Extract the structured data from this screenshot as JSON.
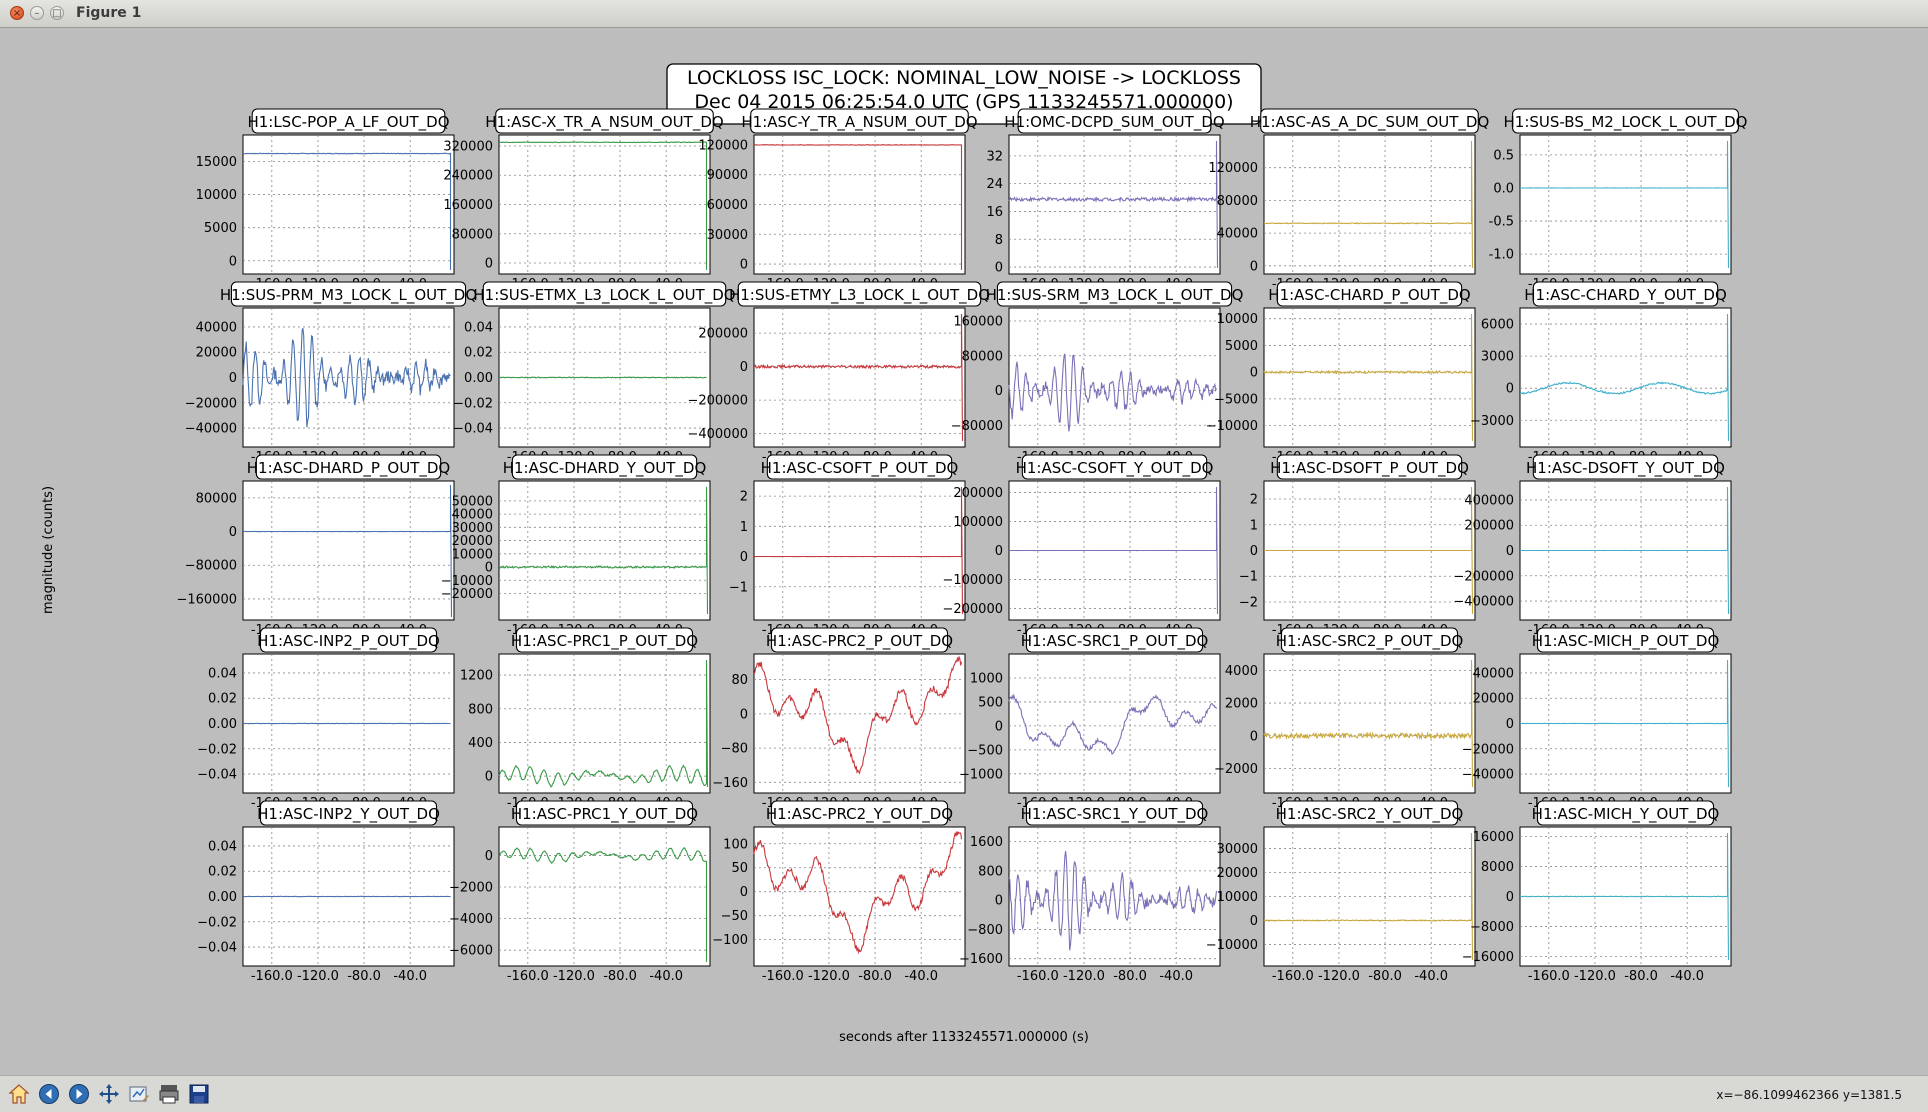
{
  "window": {
    "title": "Figure 1"
  },
  "figure": {
    "suptitle_line1": "LOCKLOSS ISC_LOCK: NOMINAL_LOW_NOISE -> LOCKLOSS",
    "suptitle_line2": "Dec 04 2015 06:25:54.0 UTC (GPS 1133245571.000000)",
    "ylabel": "magnitude (counts)",
    "xlabel": "seconds after 1133245571.000000 (s)"
  },
  "toolbar": {
    "buttons": [
      "home-icon",
      "back-icon",
      "forward-icon",
      "pan-icon",
      "subplots-icon",
      "zoom-icon",
      "save-icon"
    ],
    "coords": "x=−86.1099462366 y=1381.5"
  },
  "chart_data": {
    "type": "line",
    "layout": "grid 5 rows x 6 columns",
    "grid": true,
    "x_ticks": [
      "-160.0",
      "-120.0",
      "-80.0",
      "-40.0"
    ],
    "xlim": [
      -185,
      -2
    ],
    "series_colors": [
      "#4a72b0",
      "#3a9a47",
      "#c8383c",
      "#7a72b8",
      "#c9a93d",
      "#41b0cc"
    ],
    "panels": [
      {
        "title": "H1:LSC-POP_A_LF_OUT_DQ",
        "yticks": [
          "15000",
          "10000",
          "5000",
          "0"
        ],
        "ylim": [
          -2000,
          19000
        ],
        "level": 16200,
        "pattern": "flat",
        "amp": 50,
        "end": "drop"
      },
      {
        "title": "H1:ASC-X_TR_A_NSUM_OUT_DQ",
        "yticks": [
          "320000",
          "240000",
          "160000",
          "80000",
          "0"
        ],
        "ylim": [
          -30000,
          350000
        ],
        "level": 330000,
        "pattern": "flat",
        "amp": 800,
        "end": "drop"
      },
      {
        "title": "H1:ASC-Y_TR_A_NSUM_OUT_DQ",
        "yticks": [
          "120000",
          "90000",
          "60000",
          "30000",
          "0"
        ],
        "ylim": [
          -10000,
          130000
        ],
        "level": 120000,
        "pattern": "flat",
        "amp": 300,
        "end": "drop"
      },
      {
        "title": "H1:OMC-DCPD_SUM_OUT_DQ",
        "yticks": [
          "32",
          "24",
          "16",
          "8",
          "0"
        ],
        "ylim": [
          -2,
          38
        ],
        "level": 19.5,
        "pattern": "noise",
        "amp": 0.5,
        "end": "spike"
      },
      {
        "title": "H1:ASC-AS_A_DC_SUM_OUT_DQ",
        "yticks": [
          "120000",
          "80000",
          "40000",
          "0"
        ],
        "ylim": [
          -10000,
          160000
        ],
        "level": 52000,
        "pattern": "flat",
        "amp": 500,
        "end": "spike"
      },
      {
        "title": "H1:SUS-BS_M2_LOCK_L_OUT_DQ",
        "yticks": [
          "0.5",
          "0.0",
          "-0.5",
          "-1.0"
        ],
        "ylim": [
          -1.3,
          0.8
        ],
        "level": 0,
        "pattern": "flat",
        "amp": 0.002,
        "end": "spike"
      },
      {
        "title": "H1:SUS-PRM_M3_LOCK_L_OUT_DQ",
        "yticks": [
          "40000",
          "20000",
          "0",
          "−20000",
          "−40000"
        ],
        "ylim": [
          -55000,
          55000
        ],
        "level": 0,
        "pattern": "burst",
        "amp": 40000,
        "end": "none"
      },
      {
        "title": "H1:SUS-ETMX_L3_LOCK_L_OUT_DQ",
        "yticks": [
          "0.04",
          "0.02",
          "0.00",
          "−0.02",
          "−0.04"
        ],
        "ylim": [
          -0.055,
          0.055
        ],
        "level": 0,
        "pattern": "flat",
        "amp": 0.0003,
        "end": "none"
      },
      {
        "title": "H1:SUS-ETMY_L3_LOCK_L_OUT_DQ",
        "yticks": [
          "200000",
          "0",
          "−200000",
          "−400000"
        ],
        "ylim": [
          -480000,
          350000
        ],
        "level": 0,
        "pattern": "noise",
        "amp": 8000,
        "end": "spike"
      },
      {
        "title": "H1:SUS-SRM_M3_LOCK_L_OUT_DQ",
        "yticks": [
          "160000",
          "80000",
          "0",
          "−80000"
        ],
        "ylim": [
          -130000,
          190000
        ],
        "level": 0,
        "pattern": "burst",
        "amp": 90000,
        "end": "none"
      },
      {
        "title": "H1:ASC-CHARD_P_OUT_DQ",
        "yticks": [
          "10000",
          "5000",
          "0",
          "−5000",
          "−10000"
        ],
        "ylim": [
          -14000,
          12000
        ],
        "level": 0,
        "pattern": "noise",
        "amp": 200,
        "end": "spike"
      },
      {
        "title": "H1:ASC-CHARD_Y_OUT_DQ",
        "yticks": [
          "6000",
          "3000",
          "0",
          "−3000"
        ],
        "ylim": [
          -5500,
          7500
        ],
        "level": 0,
        "pattern": "slow",
        "amp": 500,
        "end": "spike"
      },
      {
        "title": "H1:ASC-DHARD_P_OUT_DQ",
        "yticks": [
          "80000",
          "0",
          "−80000",
          "−160000"
        ],
        "ylim": [
          -210000,
          120000
        ],
        "level": 0,
        "pattern": "flat",
        "amp": 400,
        "end": "dropspike"
      },
      {
        "title": "H1:ASC-DHARD_Y_OUT_DQ",
        "yticks": [
          "50000",
          "40000",
          "30000",
          "20000",
          "10000",
          "0",
          "−10000",
          "−20000"
        ],
        "ylim": [
          -40000,
          65000
        ],
        "level": 0,
        "pattern": "noise",
        "amp": 700,
        "end": "spike"
      },
      {
        "title": "H1:ASC-CSOFT_P_OUT_DQ",
        "yticks": [
          "2",
          "1",
          "0",
          "−1"
        ],
        "ylim": [
          -2.1,
          2.5
        ],
        "level": 0,
        "pattern": "flat",
        "amp": 0.002,
        "end": "spike"
      },
      {
        "title": "H1:ASC-CSOFT_Y_OUT_DQ",
        "yticks": [
          "200000",
          "100000",
          "0",
          "−100000",
          "−200000"
        ],
        "ylim": [
          -240000,
          240000
        ],
        "level": 0,
        "pattern": "flat",
        "amp": 200,
        "end": "spike"
      },
      {
        "title": "H1:ASC-DSOFT_P_OUT_DQ",
        "yticks": [
          "2",
          "1",
          "0",
          "−1",
          "−2"
        ],
        "ylim": [
          -2.7,
          2.7
        ],
        "level": 0,
        "pattern": "flat",
        "amp": 0.002,
        "end": "spike"
      },
      {
        "title": "H1:ASC-DSOFT_Y_OUT_DQ",
        "yticks": [
          "400000",
          "200000",
          "0",
          "−200000",
          "−400000"
        ],
        "ylim": [
          -550000,
          550000
        ],
        "level": 0,
        "pattern": "flat",
        "amp": 500,
        "end": "spike"
      },
      {
        "title": "H1:ASC-INP2_P_OUT_DQ",
        "yticks": [
          "0.04",
          "0.02",
          "0.00",
          "−0.02",
          "−0.04"
        ],
        "ylim": [
          -0.055,
          0.055
        ],
        "level": 0,
        "pattern": "flat",
        "amp": 0.0002,
        "end": "none"
      },
      {
        "title": "H1:ASC-PRC1_P_OUT_DQ",
        "yticks": [
          "1200",
          "800",
          "400",
          "0"
        ],
        "ylim": [
          -200,
          1450
        ],
        "level": 0,
        "pattern": "osc",
        "amp": 130,
        "end": "spike"
      },
      {
        "title": "H1:ASC-PRC2_P_OUT_DQ",
        "yticks": [
          "80",
          "0",
          "−80",
          "−160"
        ],
        "ylim": [
          -185,
          140
        ],
        "level": 0,
        "pattern": "wander",
        "amp": 120,
        "end": "none"
      },
      {
        "title": "H1:ASC-SRC1_P_OUT_DQ",
        "yticks": [
          "1000",
          "500",
          "0",
          "−500",
          "−1000"
        ],
        "ylim": [
          -1400,
          1500
        ],
        "level": 0,
        "pattern": "wander",
        "amp": 700,
        "end": "none"
      },
      {
        "title": "H1:ASC-SRC2_P_OUT_DQ",
        "yticks": [
          "4000",
          "2000",
          "0",
          "−2000"
        ],
        "ylim": [
          -3500,
          5000
        ],
        "level": 0,
        "pattern": "noise",
        "amp": 150,
        "end": "spike"
      },
      {
        "title": "H1:ASC-MICH_P_OUT_DQ",
        "yticks": [
          "40000",
          "20000",
          "0",
          "−20000",
          "−40000"
        ],
        "ylim": [
          -55000,
          55000
        ],
        "level": 0,
        "pattern": "flat",
        "amp": 150,
        "end": "spike"
      },
      {
        "title": "H1:ASC-INP2_Y_OUT_DQ",
        "yticks": [
          "0.04",
          "0.02",
          "0.00",
          "−0.02",
          "−0.04"
        ],
        "ylim": [
          -0.055,
          0.055
        ],
        "level": 0,
        "pattern": "flat",
        "amp": 0.0002,
        "end": "none"
      },
      {
        "title": "H1:ASC-PRC1_Y_OUT_DQ",
        "yticks": [
          "0",
          "−2000",
          "−4000",
          "−6000"
        ],
        "ylim": [
          -7000,
          1800
        ],
        "level": 0,
        "pattern": "osc",
        "amp": 500,
        "end": "drop"
      },
      {
        "title": "H1:ASC-PRC2_Y_OUT_DQ",
        "yticks": [
          "100",
          "50",
          "0",
          "−50",
          "−100"
        ],
        "ylim": [
          -155,
          135
        ],
        "level": 0,
        "pattern": "wander",
        "amp": 110,
        "end": "none"
      },
      {
        "title": "H1:ASC-SRC1_Y_OUT_DQ",
        "yticks": [
          "1600",
          "800",
          "0",
          "−800",
          "−1600"
        ],
        "ylim": [
          -1800,
          2000
        ],
        "level": 0,
        "pattern": "burst",
        "amp": 1300,
        "end": "none"
      },
      {
        "title": "H1:ASC-SRC2_Y_OUT_DQ",
        "yticks": [
          "30000",
          "20000",
          "10000",
          "0",
          "−10000"
        ],
        "ylim": [
          -19000,
          39000
        ],
        "level": 0,
        "pattern": "flat",
        "amp": 200,
        "end": "spike"
      },
      {
        "title": "H1:ASC-MICH_Y_OUT_DQ",
        "yticks": [
          "16000",
          "8000",
          "0",
          "−8000",
          "−16000"
        ],
        "ylim": [
          -18500,
          18500
        ],
        "level": 0,
        "pattern": "flat",
        "amp": 80,
        "end": "spike"
      }
    ]
  }
}
